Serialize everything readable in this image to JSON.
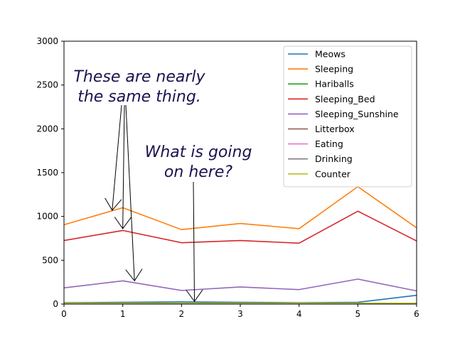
{
  "chart_data": {
    "type": "line",
    "title": "",
    "xlabel": "",
    "ylabel": "",
    "x": [
      0,
      1,
      2,
      3,
      4,
      5,
      6
    ],
    "xlim": [
      0,
      6
    ],
    "ylim": [
      0,
      3000
    ],
    "xticks": [
      "0",
      "1",
      "2",
      "3",
      "4",
      "5",
      "6"
    ],
    "yticks": [
      "0",
      "500",
      "1000",
      "1500",
      "2000",
      "2500",
      "3000"
    ],
    "grid": false,
    "legend_position": "top-right",
    "series": [
      {
        "name": "Meows",
        "color": "#1f77b4",
        "values": [
          15,
          20,
          25,
          20,
          15,
          20,
          100
        ]
      },
      {
        "name": "Sleeping",
        "color": "#ff7f0e",
        "values": [
          905,
          1100,
          850,
          920,
          860,
          1340,
          870
        ]
      },
      {
        "name": "Hariballs",
        "color": "#2ca02c",
        "values": [
          5,
          5,
          5,
          5,
          5,
          5,
          5
        ]
      },
      {
        "name": "Sleeping_Bed",
        "color": "#d62728",
        "values": [
          725,
          840,
          700,
          725,
          695,
          1060,
          720
        ]
      },
      {
        "name": "Sleeping_Sunshine",
        "color": "#9467bd",
        "values": [
          185,
          265,
          155,
          195,
          165,
          285,
          150
        ]
      },
      {
        "name": "Litterbox",
        "color": "#8c564b",
        "values": [
          5,
          5,
          5,
          5,
          5,
          5,
          5
        ]
      },
      {
        "name": "Eating",
        "color": "#e377c2",
        "values": [
          5,
          5,
          5,
          5,
          5,
          5,
          5
        ]
      },
      {
        "name": "Drinking",
        "color": "#7f7f7f",
        "values": [
          5,
          5,
          5,
          5,
          5,
          5,
          5
        ]
      },
      {
        "name": "Counter",
        "color": "#bcbd22",
        "values": [
          10,
          10,
          10,
          10,
          10,
          10,
          10
        ]
      }
    ],
    "annotations": [
      {
        "id": "same",
        "lines": [
          "These are nearly",
          "the same thing."
        ],
        "targets": [
          [
            0.82,
            1070
          ],
          [
            1.0,
            860
          ],
          [
            1.2,
            265
          ]
        ]
      },
      {
        "id": "going",
        "lines": [
          "What is going",
          "on here?"
        ],
        "targets": [
          [
            2.22,
            30
          ]
        ]
      }
    ]
  }
}
